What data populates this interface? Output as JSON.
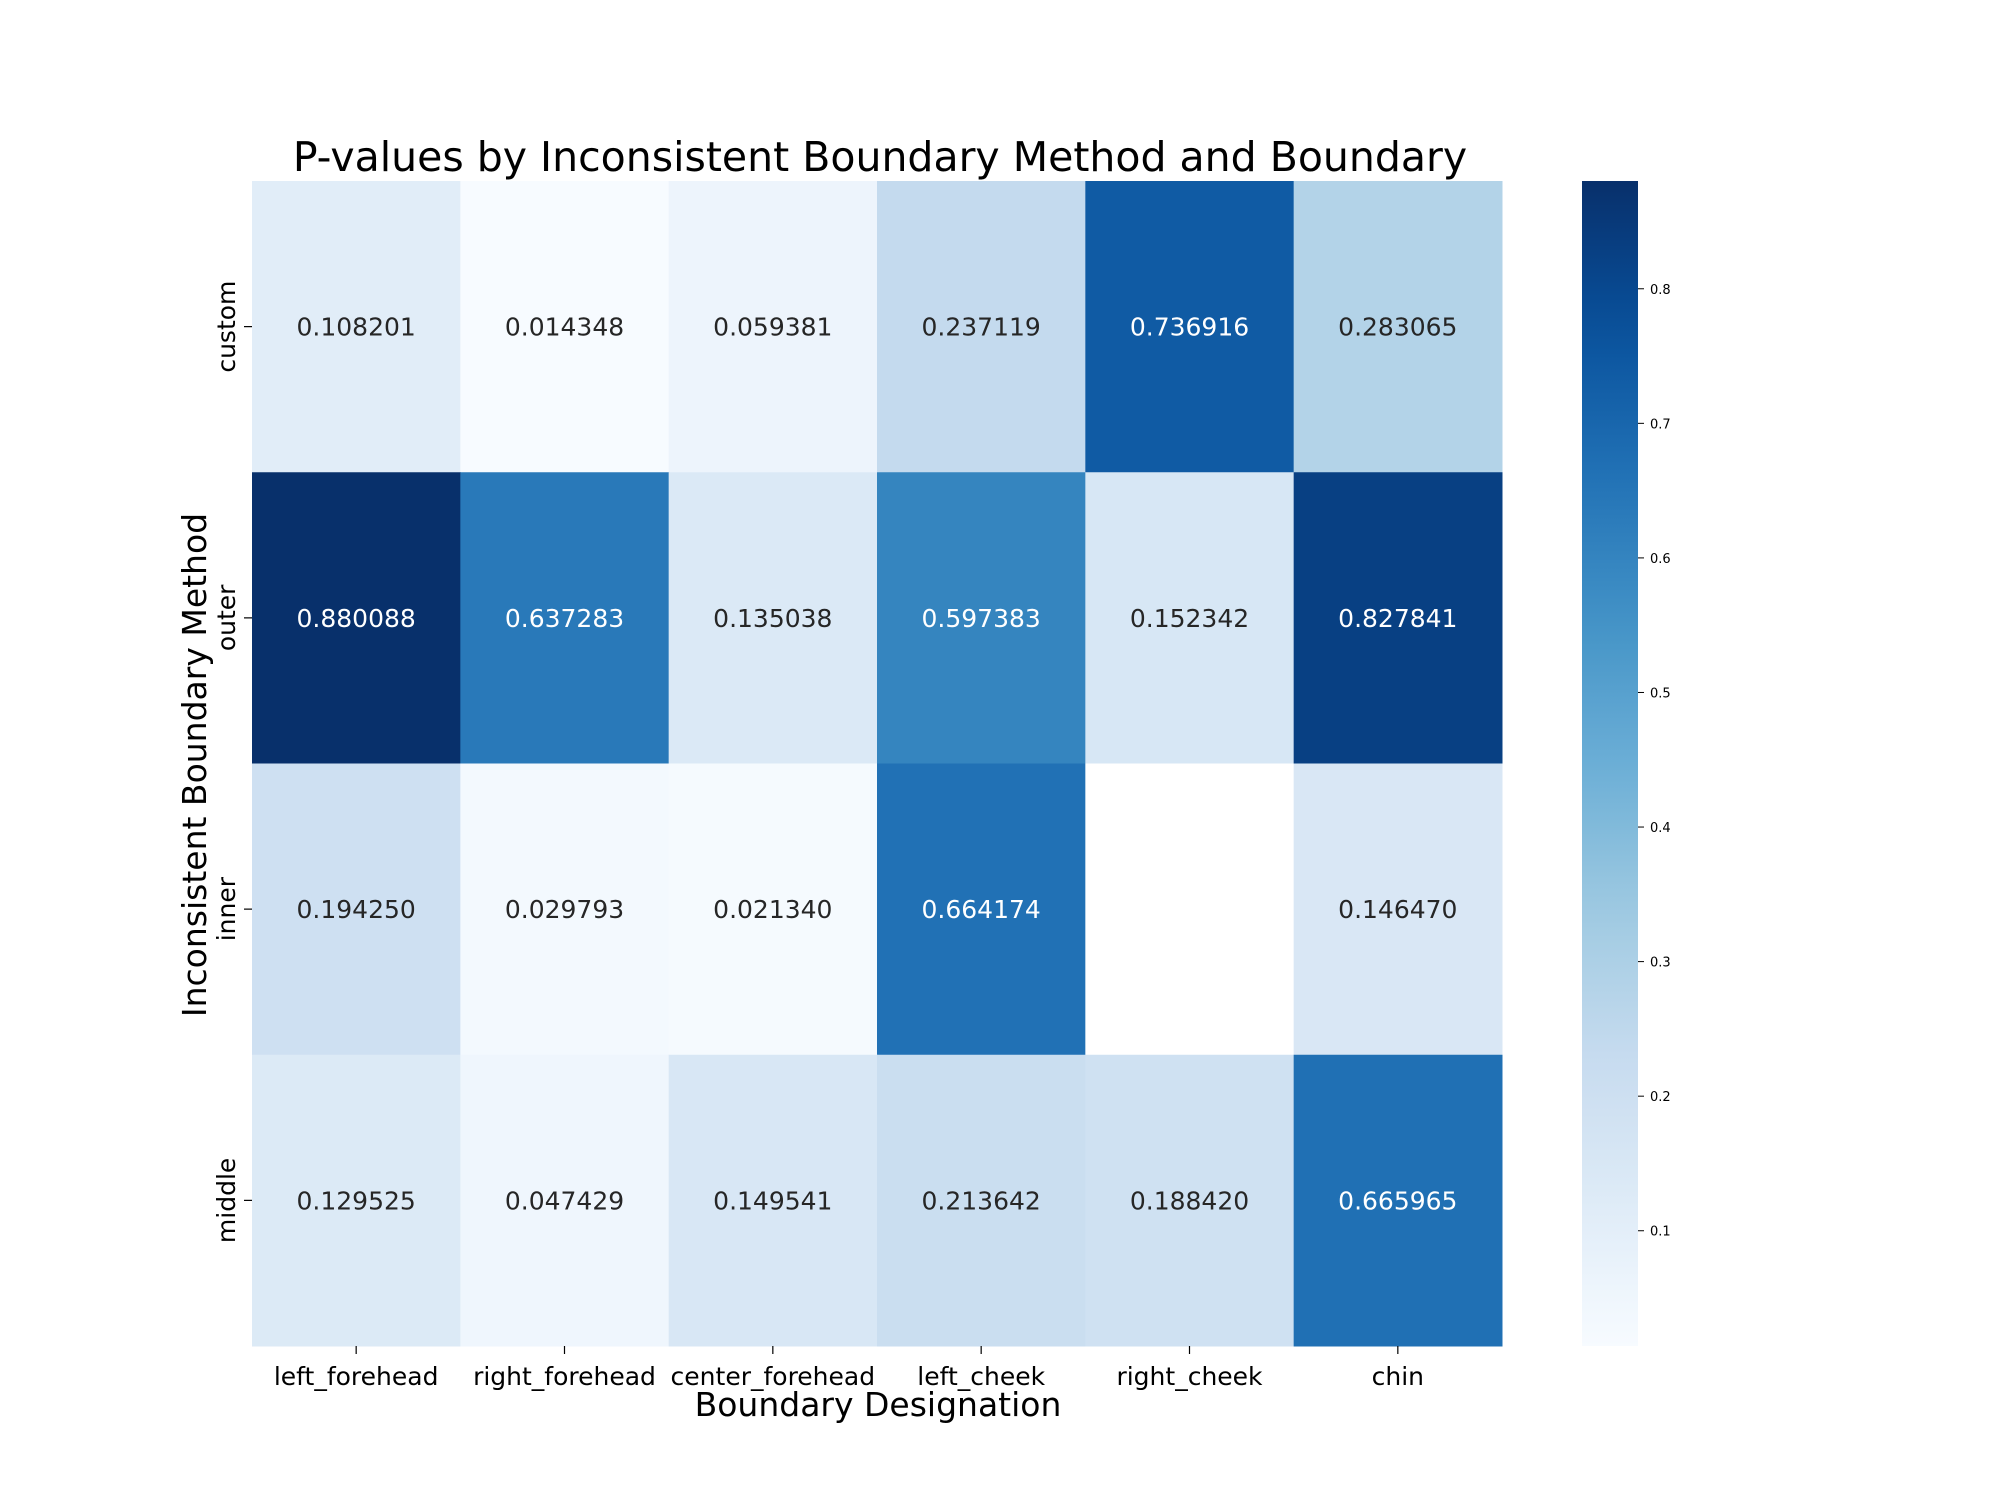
{
  "chart_data": {
    "type": "heatmap",
    "title": "P-values by Inconsistent Boundary Method and Boundary",
    "xlabel": "Boundary Designation",
    "ylabel": "Inconsistent Boundary Method",
    "x_categories": [
      "left_forehead",
      "right_forehead",
      "center_forehead",
      "left_cheek",
      "right_cheek",
      "chin"
    ],
    "y_categories": [
      "custom",
      "outer",
      "inner",
      "middle"
    ],
    "values": [
      [
        0.108201,
        0.014348,
        0.059381,
        0.237119,
        0.736916,
        0.283065
      ],
      [
        0.880088,
        0.637283,
        0.135038,
        0.597383,
        0.152342,
        0.827841
      ],
      [
        0.19425,
        0.029793,
        0.02134,
        0.664174,
        null,
        0.14647
      ],
      [
        0.129525,
        0.047429,
        0.149541,
        0.213642,
        0.18842,
        0.665965
      ]
    ],
    "value_labels": [
      [
        "0.108201",
        "0.014348",
        "0.059381",
        "0.237119",
        "0.736916",
        "0.283065"
      ],
      [
        "0.880088",
        "0.637283",
        "0.135038",
        "0.597383",
        "0.152342",
        "0.827841"
      ],
      [
        "0.194250",
        "0.029793",
        "0.021340",
        "0.664174",
        "",
        "0.146470"
      ],
      [
        "0.129525",
        "0.047429",
        "0.149541",
        "0.213642",
        "0.188420",
        "0.665965"
      ]
    ],
    "colorbar": {
      "colormap": "Blues",
      "vmin": 0.014348,
      "vmax": 0.880088,
      "ticks": [
        0.1,
        0.2,
        0.3,
        0.4,
        0.5,
        0.6,
        0.7,
        0.8
      ],
      "tick_labels": [
        "0.1",
        "0.2",
        "0.3",
        "0.4",
        "0.5",
        "0.6",
        "0.7",
        "0.8"
      ]
    },
    "missing_color": "#ffffff"
  }
}
